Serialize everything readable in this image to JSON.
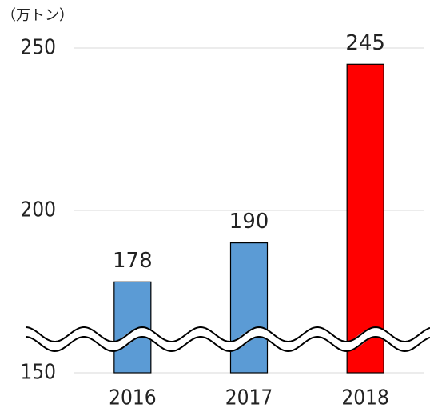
{
  "chart_data": {
    "type": "bar",
    "y_label": "（万トン）",
    "categories": [
      "2016",
      "2017",
      "2018"
    ],
    "values": [
      178,
      190,
      245
    ],
    "colors": [
      "#5b9bd5",
      "#5b9bd5",
      "#ff0000"
    ],
    "ylim": [
      150,
      250
    ],
    "yticks": [
      150,
      200,
      250
    ],
    "grid": true
  }
}
